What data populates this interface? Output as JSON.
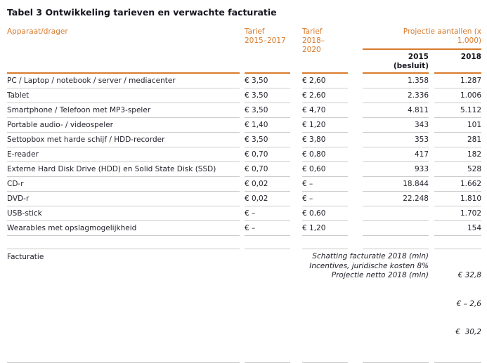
{
  "title": "Tabel 3 Ontwikkeling tarieven en verwachte facturatie",
  "colors": {
    "accent_orange": "#d97b2c",
    "row_line_gray": "#cccccc",
    "text_dark": "#22222c"
  },
  "header": {
    "device": "Apparaat/drager",
    "tariff_2015_2017": "Tarief\n2015–2017",
    "tariff_2018_2020": "Tarief\n2018–\n2020",
    "projection_group": "Projectie aantallen (x\n1.000)",
    "col_2015": "2015\n(besluit)",
    "col_2018": "2018"
  },
  "rows": [
    {
      "device": "PC / Laptop / notebook / server / mediacenter",
      "t1": "€ 3,50",
      "t2": "€ 2,60",
      "n2015": "1.358",
      "n2018": "1.287"
    },
    {
      "device": "Tablet",
      "t1": "€ 3,50",
      "t2": "€ 2,60",
      "n2015": "2.336",
      "n2018": "1.006"
    },
    {
      "device": "Smartphone / Telefoon met MP3-speler",
      "t1": "€ 3,50",
      "t2": "€ 4,70",
      "n2015": "4.811",
      "n2018": "5.112"
    },
    {
      "device": "Portable audio- / videospeler",
      "t1": "€ 1,40",
      "t2": "€ 1,20",
      "n2015": "343",
      "n2018": "101"
    },
    {
      "device": "Settopbox met harde schijf / HDD-recorder",
      "t1": "€ 3,50",
      "t2": "€ 3,80",
      "n2015": "353",
      "n2018": "281"
    },
    {
      "device": "E-reader",
      "t1": "€ 0,70",
      "t2": "€ 0,80",
      "n2015": "417",
      "n2018": "182"
    },
    {
      "device": "Externe Hard Disk Drive (HDD) en Solid State Disk (SSD)",
      "t1": "€ 0,70",
      "t2": "€ 0,60",
      "n2015": "933",
      "n2018": "528"
    },
    {
      "device": "CD-r",
      "t1": "€ 0,02",
      "t2": "€ –",
      "n2015": "18.844",
      "n2018": "1.662"
    },
    {
      "device": "DVD-r",
      "t1": "€ 0,02",
      "t2": "€ –",
      "n2015": "22.248",
      "n2018": "1.810"
    },
    {
      "device": "USB-stick",
      "t1": "€ –",
      "t2": "€ 0,60",
      "n2015": "",
      "n2018": "1.702"
    },
    {
      "device": "Wearables met opslagmogelijkheid",
      "t1": "€ –",
      "t2": "€ 1,20",
      "n2015": "",
      "n2018": "154"
    }
  ],
  "footer": {
    "label": "Facturatie",
    "lines": [
      {
        "label": "Schatting facturatie 2018 (mln)",
        "value": "€ 32,8"
      },
      {
        "label": "Incentives, juridische kosten 8%",
        "value": "€ – 2,6"
      },
      {
        "label": "Projectie netto 2018 (mln)",
        "value": "€  30,2"
      }
    ]
  }
}
